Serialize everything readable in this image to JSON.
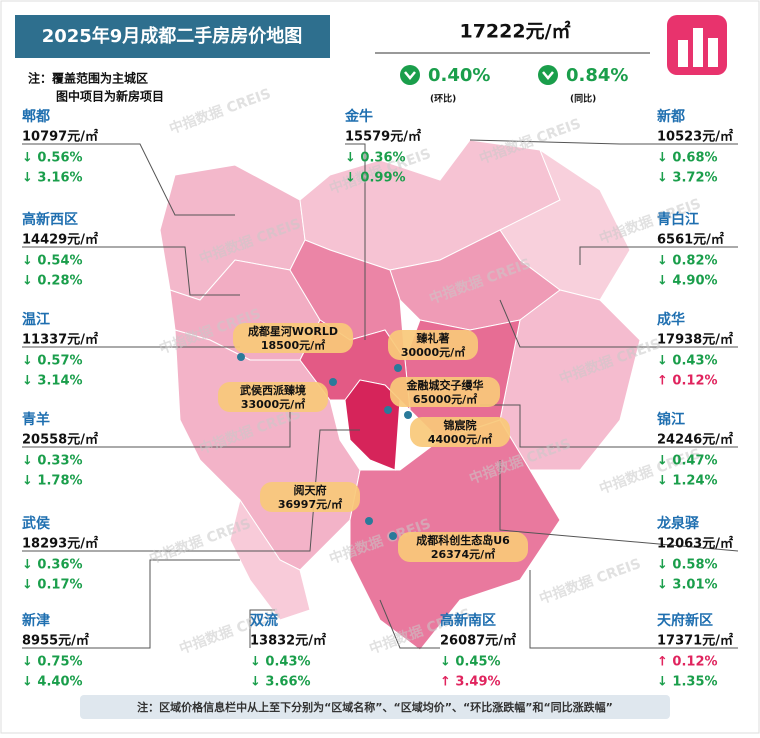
{
  "header": {
    "title": "2025年9月成都二手房房价地图",
    "notes": [
      "注：覆盖范围为主城区",
      "图中项目为新房项目"
    ]
  },
  "overall": {
    "price": "17222元/㎡",
    "mom": "0.40%",
    "mom_label": "(环比)",
    "yoy": "0.84%",
    "yoy_label": "(同比)"
  },
  "districts": [
    {
      "name": "郫都",
      "price": "10797元/㎡",
      "mom": "↓ 0.56%",
      "yoy": "↓ 3.16%"
    },
    {
      "name": "高新西区",
      "price": "14429元/㎡",
      "mom": "↓ 0.54%",
      "yoy": "↓ 0.28%"
    },
    {
      "name": "温江",
      "price": "11337元/㎡",
      "mom": "↓ 0.57%",
      "yoy": "↓ 3.14%"
    },
    {
      "name": "青羊",
      "price": "20558元/㎡",
      "mom": "↓ 0.33%",
      "yoy": "↓ 1.78%"
    },
    {
      "name": "武侯",
      "price": "18293元/㎡",
      "mom": "↓ 0.36%",
      "yoy": "↓ 0.17%"
    },
    {
      "name": "新津",
      "price": "8955元/㎡",
      "mom": "↓ 0.75%",
      "yoy": "↓ 4.40%"
    },
    {
      "name": "金牛",
      "price": "15579元/㎡",
      "mom": "↓ 0.36%",
      "yoy": "↓ 0.99%"
    },
    {
      "name": "双流",
      "price": "13832元/㎡",
      "mom": "↓ 0.43%",
      "yoy": "↓ 3.66%"
    },
    {
      "name": "高新南区",
      "price": "26087元/㎡",
      "mom": "↓ 0.45%",
      "yoy": "↑ 3.49%"
    },
    {
      "name": "新都",
      "price": "10523元/㎡",
      "mom": "↓ 0.68%",
      "yoy": "↓ 3.72%"
    },
    {
      "name": "青白江",
      "price": "6561元/㎡",
      "mom": "↓ 0.82%",
      "yoy": "↓ 4.90%"
    },
    {
      "name": "成华",
      "price": "17938元/㎡",
      "mom": "↓ 0.43%",
      "yoy": "↑ 0.12%"
    },
    {
      "name": "锦江",
      "price": "24246元/㎡",
      "mom": "↓ 0.47%",
      "yoy": "↓ 1.24%"
    },
    {
      "name": "龙泉驿",
      "price": "12063元/㎡",
      "mom": "↓ 0.58%",
      "yoy": "↓ 3.01%"
    },
    {
      "name": "天府新区",
      "price": "17371元/㎡",
      "mom": "↑ 0.12%",
      "yoy": "↓ 1.35%"
    }
  ],
  "projects": [
    {
      "name": "成都星河WORLD",
      "price": "18500元/㎡"
    },
    {
      "name": "臻礼著",
      "price": "30000元/㎡"
    },
    {
      "name": "金融城交子缦华",
      "price": "65000元/㎡"
    },
    {
      "name": "武侯西派臻境",
      "price": "33000元/㎡"
    },
    {
      "name": "锦宸院",
      "price": "44000元/㎡"
    },
    {
      "name": "阅天府",
      "price": "36997元/㎡"
    },
    {
      "name": "成都科创生态岛U6",
      "price": "26374元/㎡"
    }
  ],
  "watermark": "中指数据 CREIS",
  "footer": "注：区域价格信息栏中从上至下分别为“区域名称”、“区域均价”、“环比涨跌幅”和“同比涨跌幅”"
}
